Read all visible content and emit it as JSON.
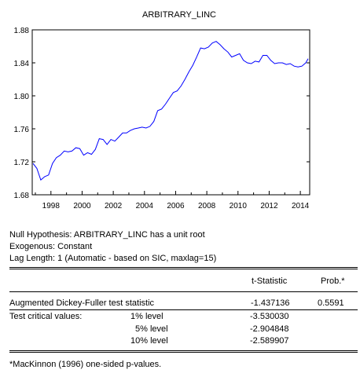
{
  "chart_data": {
    "type": "line",
    "title": "ARBITRARY_LINC",
    "xlabel": "",
    "ylabel": "",
    "xlim": [
      1996.8,
      2014.6
    ],
    "ylim": [
      1.68,
      1.88
    ],
    "yticks": [
      1.68,
      1.72,
      1.76,
      1.8,
      1.84,
      1.88
    ],
    "ytick_labels": [
      "1.68",
      "1.72",
      "1.76",
      "1.80",
      "1.84",
      "1.88"
    ],
    "xticks": [
      1998,
      2000,
      2002,
      2004,
      2006,
      2008,
      2010,
      2012,
      2014
    ],
    "xtick_labels": [
      "1998",
      "2000",
      "2002",
      "2004",
      "2006",
      "2008",
      "2010",
      "2012",
      "2014"
    ],
    "grid": false,
    "legend": "none",
    "line_color": "#0000ff",
    "series": [
      {
        "x": [
          1996.85,
          1997.1,
          1997.35,
          1997.6,
          1997.85,
          1998.1,
          1998.35,
          1998.6,
          1998.85,
          1999.1,
          1999.35,
          1999.6,
          1999.85,
          2000.1,
          2000.35,
          2000.6,
          2000.85,
          2001.1,
          2001.35,
          2001.6,
          2001.85,
          2002.1,
          2002.35,
          2002.6,
          2002.85,
          2003.1,
          2003.35,
          2003.6,
          2003.85,
          2004.1,
          2004.35,
          2004.6,
          2004.85,
          2005.1,
          2005.35,
          2005.6,
          2005.85,
          2006.1,
          2006.35,
          2006.6,
          2006.85,
          2007.1,
          2007.35,
          2007.6,
          2007.85,
          2008.1,
          2008.35,
          2008.6,
          2008.85,
          2009.1,
          2009.35,
          2009.6,
          2009.85,
          2010.1,
          2010.35,
          2010.6,
          2010.85,
          2011.1,
          2011.35,
          2011.6,
          2011.85,
          2012.1,
          2012.35,
          2012.6,
          2012.85,
          2013.1,
          2013.35,
          2013.6,
          2013.85,
          2014.1,
          2014.35,
          2014.5
        ],
        "values": [
          1.718,
          1.712,
          1.698,
          1.702,
          1.704,
          1.718,
          1.725,
          1.728,
          1.733,
          1.732,
          1.733,
          1.737,
          1.736,
          1.728,
          1.731,
          1.729,
          1.735,
          1.748,
          1.747,
          1.741,
          1.747,
          1.745,
          1.75,
          1.755,
          1.755,
          1.758,
          1.76,
          1.761,
          1.762,
          1.761,
          1.763,
          1.769,
          1.782,
          1.784,
          1.79,
          1.797,
          1.804,
          1.806,
          1.812,
          1.82,
          1.829,
          1.837,
          1.847,
          1.858,
          1.857,
          1.859,
          1.864,
          1.866,
          1.862,
          1.857,
          1.853,
          1.847,
          1.849,
          1.851,
          1.843,
          1.84,
          1.839,
          1.842,
          1.841,
          1.849,
          1.849,
          1.843,
          1.839,
          1.84,
          1.84,
          1.838,
          1.839,
          1.836,
          1.835,
          1.836,
          1.84,
          1.845
        ]
      }
    ]
  },
  "test": {
    "null_hypothesis": "Null Hypothesis: ARBITRARY_LINC has a unit root",
    "exogenous": "Exogenous: Constant",
    "lag_length": "Lag Length: 1 (Automatic - based on SIC, maxlag=15)",
    "col_tstat": "t-Statistic",
    "col_prob": "Prob.*",
    "adf_label": "Augmented Dickey-Fuller test statistic",
    "adf_tstat": "-1.437136",
    "adf_prob": "0.5591",
    "crit_label": "Test critical values:",
    "crit_1_label": "1% level",
    "crit_1_value": "-3.530030",
    "crit_5_label": "5% level",
    "crit_5_value": "-2.904848",
    "crit_10_label": "10% level",
    "crit_10_value": "-2.589907",
    "footnote": "*MacKinnon (1996) one-sided p-values."
  }
}
